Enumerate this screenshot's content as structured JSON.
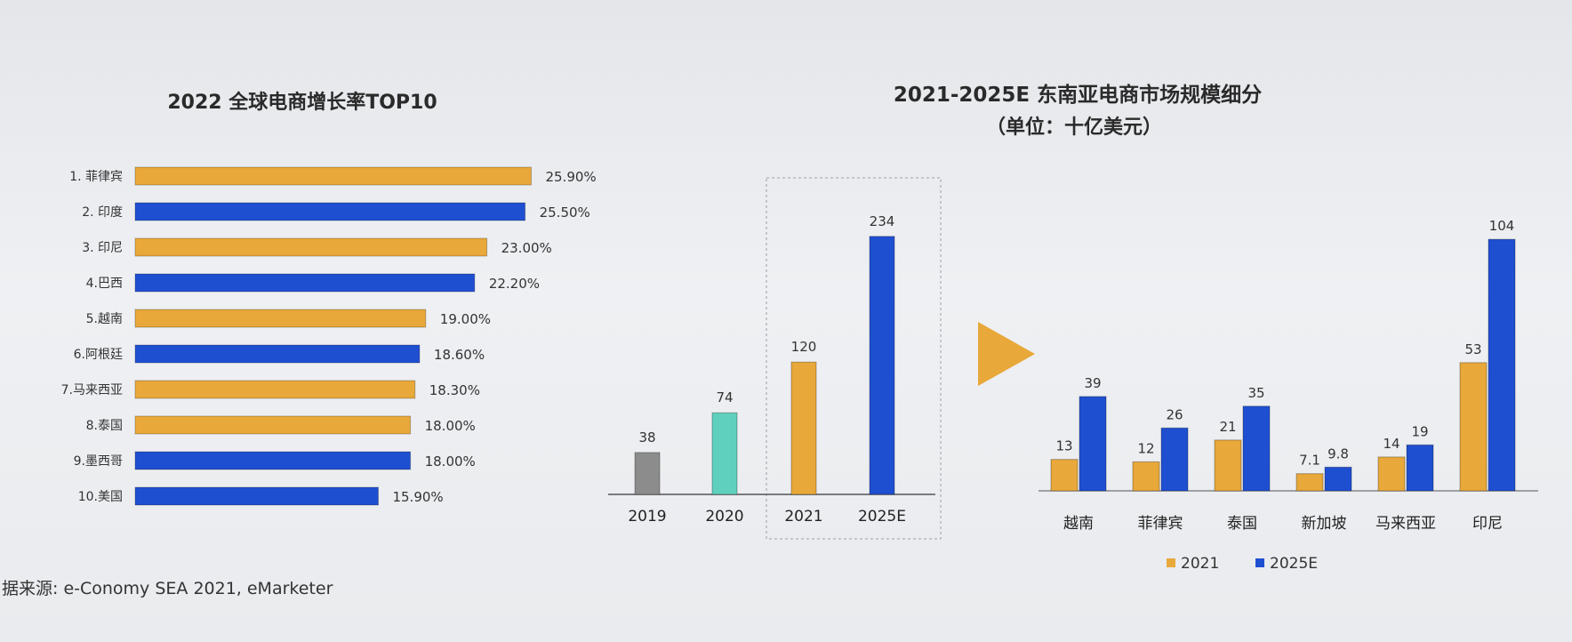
{
  "colors": {
    "orange": "#e8a83a",
    "blue": "#1f4fd1",
    "gray": "#8c8c8c",
    "teal": "#5fd0be",
    "axis": "#555555"
  },
  "source_note": "据来源: e-Conomy SEA 2021, eMarketer",
  "chart_data": [
    {
      "type": "bar",
      "orientation": "horizontal",
      "title": "2022 全球电商增长率TOP10",
      "categories": [
        "1. 菲律宾",
        "2. 印度",
        "3. 印尼",
        "4.巴西",
        "5.越南",
        "6.阿根廷",
        "7.马来西亚",
        "8.泰国",
        "9.墨西哥",
        "10.美国"
      ],
      "values": [
        25.9,
        25.5,
        23.0,
        22.2,
        19.0,
        18.6,
        18.3,
        18.0,
        18.0,
        15.9
      ],
      "value_labels": [
        "25.90%",
        "25.50%",
        "23.00%",
        "22.20%",
        "19.00%",
        "18.60%",
        "18.30%",
        "18.00%",
        "18.00%",
        "15.90%"
      ],
      "bar_colors": [
        "orange",
        "blue",
        "orange",
        "blue",
        "orange",
        "blue",
        "orange",
        "orange",
        "blue",
        "blue"
      ]
    },
    {
      "type": "bar",
      "title": "",
      "categories": [
        "2019",
        "2020",
        "2021",
        "2025E"
      ],
      "values": [
        38,
        74,
        120,
        234
      ],
      "bar_colors": [
        "gray",
        "teal",
        "orange",
        "blue"
      ]
    },
    {
      "type": "bar",
      "title": "2021-2025E 东南亚电商市场规模细分",
      "subtitle": "（单位：十亿美元）",
      "categories": [
        "越南",
        "菲律宾",
        "泰国",
        "新加坡",
        "马来西亚",
        "印尼"
      ],
      "series": [
        {
          "name": "2021",
          "color": "orange",
          "values": [
            13,
            12,
            21,
            7.1,
            14,
            53
          ],
          "labels": [
            "13",
            "12",
            "21",
            "7.1",
            "14",
            "53"
          ]
        },
        {
          "name": "2025E",
          "color": "blue",
          "values": [
            39,
            26,
            35,
            9.8,
            19,
            104
          ],
          "labels": [
            "39",
            "26",
            "35",
            "9.8",
            "19",
            "104"
          ]
        }
      ],
      "legend": "bottom"
    }
  ]
}
